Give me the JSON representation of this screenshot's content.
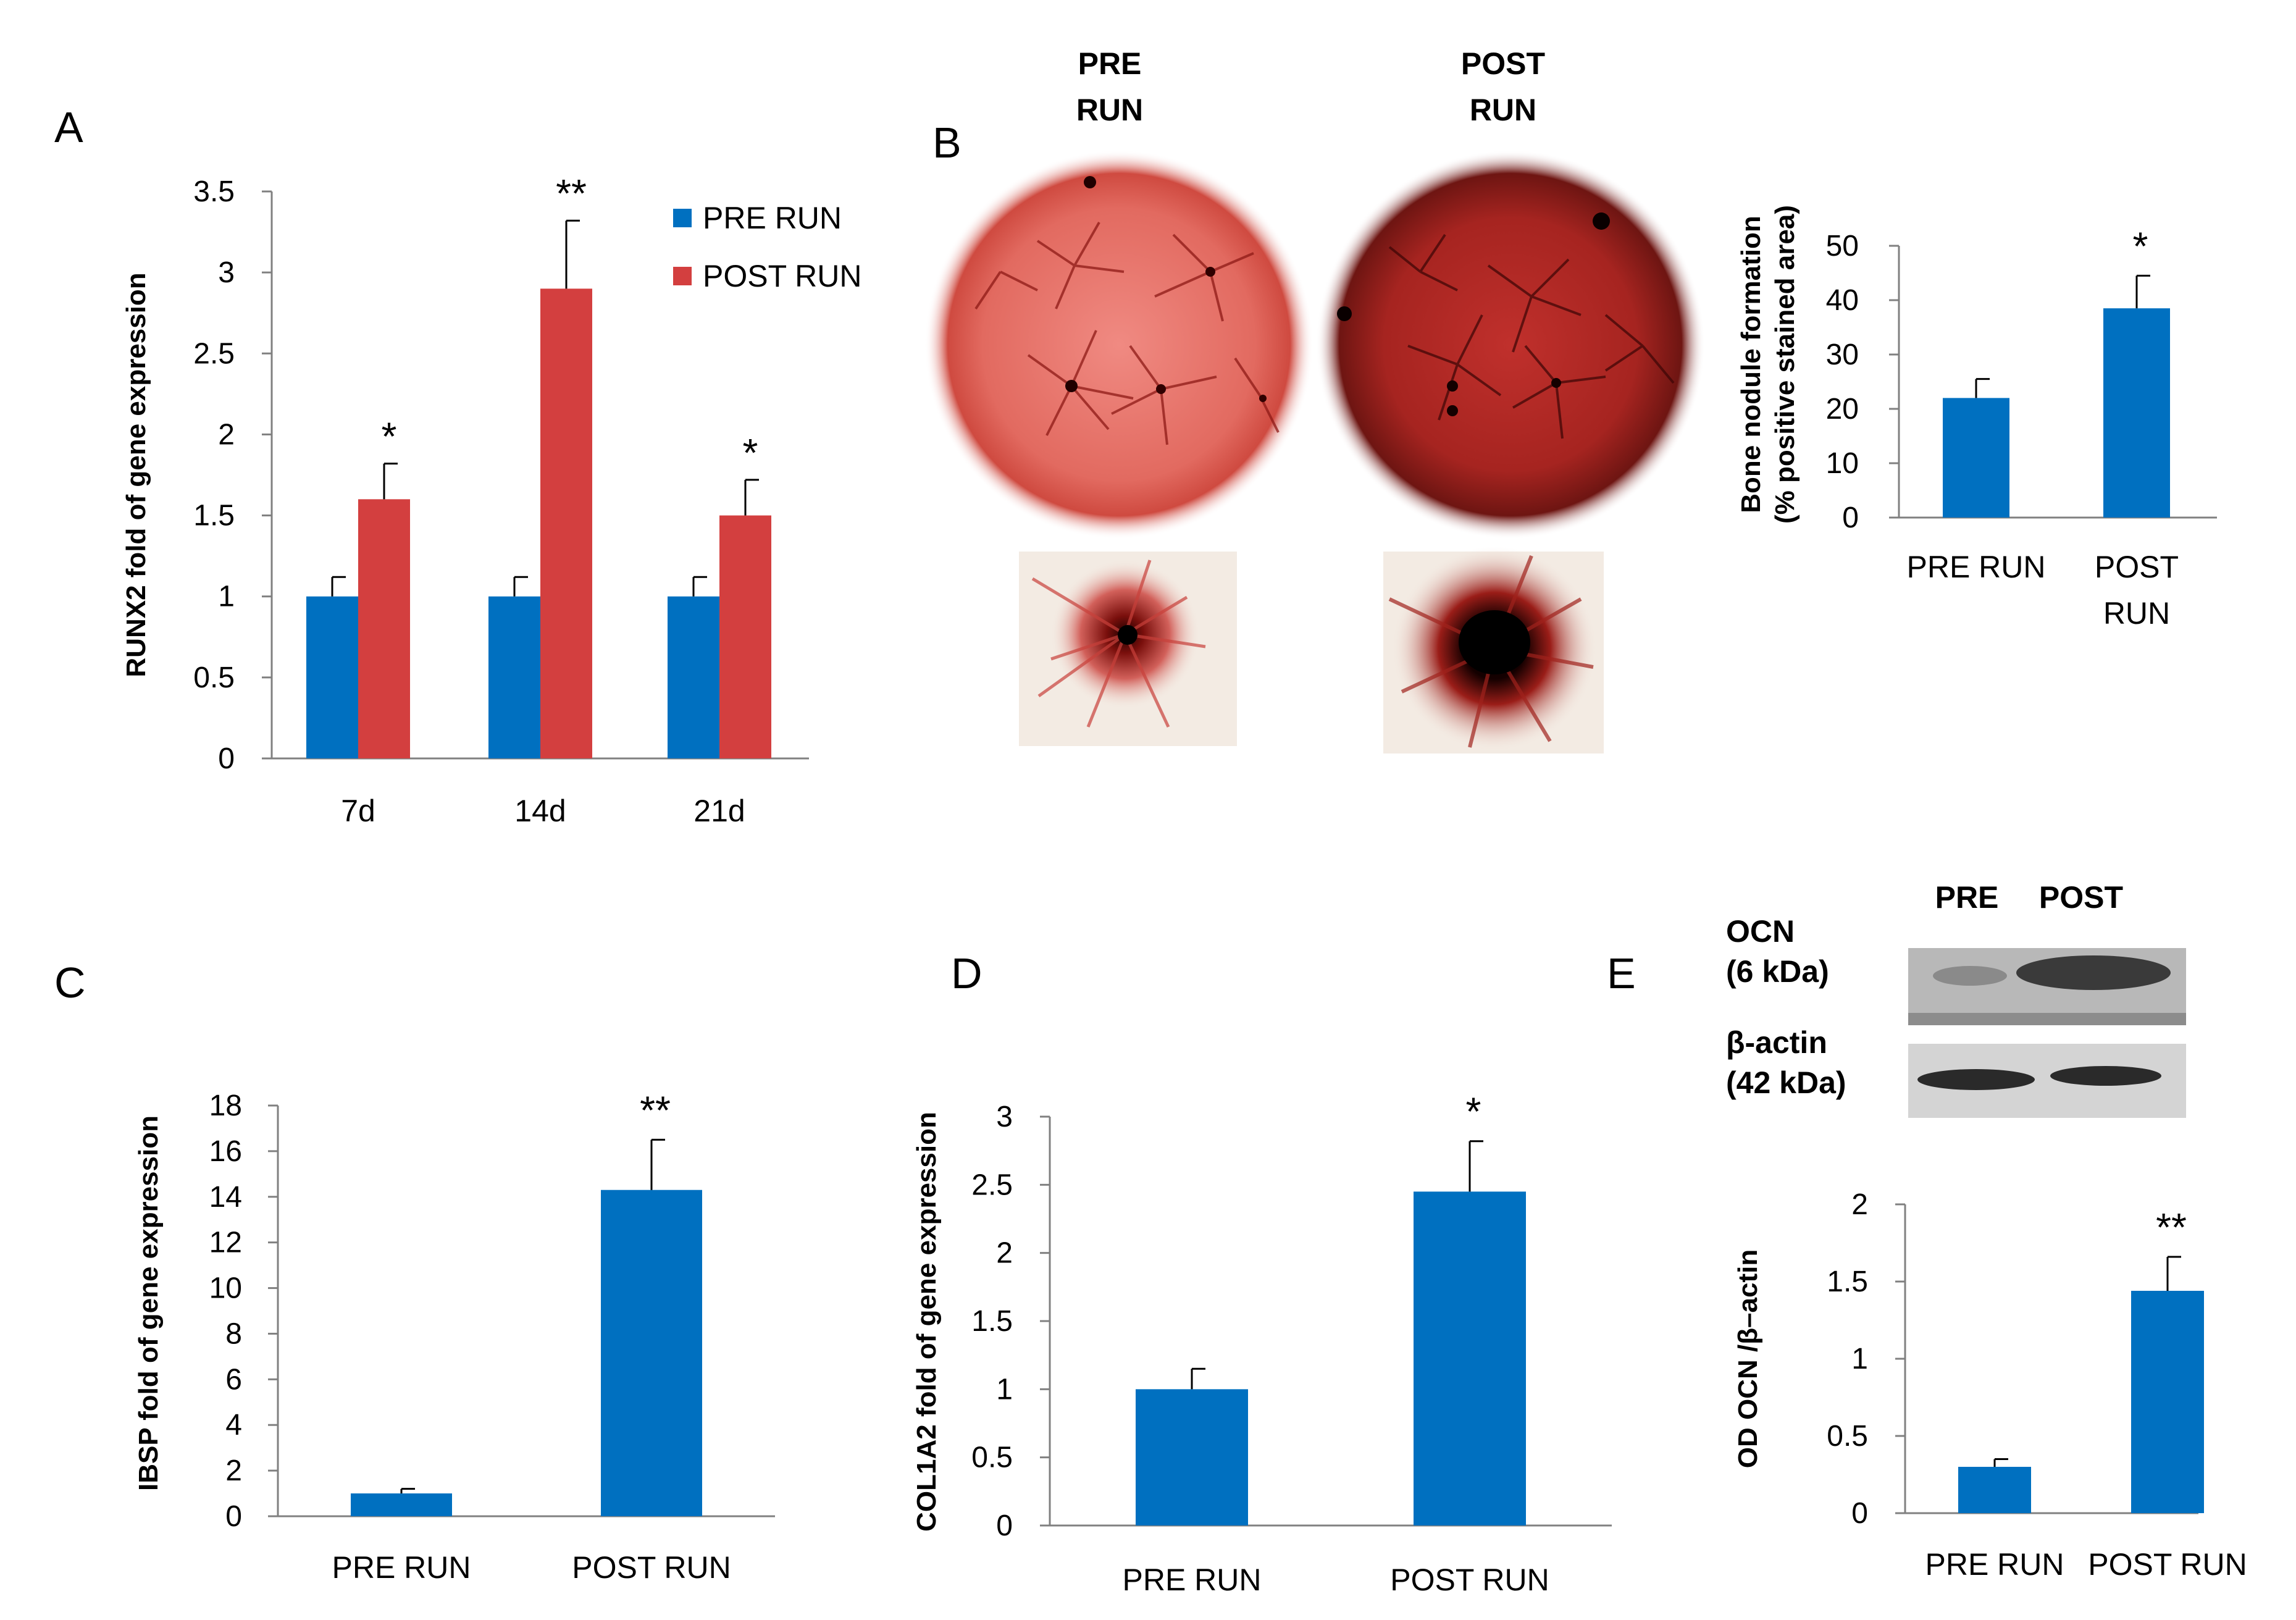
{
  "panels": {
    "A": "A",
    "B": "B",
    "C": "C",
    "D": "D",
    "E": "E"
  },
  "colors": {
    "pre": "#0070C0",
    "post": "#D33F3F",
    "axis": "#808080"
  },
  "chart_data": [
    {
      "id": "A",
      "type": "bar",
      "categories": [
        "7d",
        "14d",
        "21d"
      ],
      "series": [
        {
          "name": "PRE RUN",
          "values": [
            1,
            1,
            1
          ],
          "errors": [
            0.12,
            0.12,
            0.12
          ]
        },
        {
          "name": "POST RUN",
          "values": [
            1.6,
            2.9,
            1.5
          ],
          "errors": [
            0.22,
            0.42,
            0.22
          ]
        }
      ],
      "significance": [
        "*",
        "**",
        "*"
      ],
      "ylabel": "RUNX2 fold of gene expression",
      "ylim": [
        0,
        3.5
      ],
      "yticks": [
        "0",
        "0.5",
        "1",
        "1.5",
        "2",
        "2.5",
        "3",
        "3.5"
      ],
      "legend": "top-right"
    },
    {
      "id": "B",
      "type": "bar",
      "categories": [
        "PRE RUN",
        "POST RUN"
      ],
      "values": [
        22,
        38.5
      ],
      "errors": [
        3.5,
        6
      ],
      "significance": [
        "",
        "*"
      ],
      "ylabel": "Bone nodule formation",
      "ylabel2": "(% positive stained area)",
      "ylim": [
        0,
        50
      ],
      "yticks": [
        "0",
        "10",
        "20",
        "30",
        "40",
        "50"
      ]
    },
    {
      "id": "C",
      "type": "bar",
      "categories": [
        "PRE RUN",
        "POST RUN"
      ],
      "values": [
        1,
        14.3
      ],
      "errors": [
        0.2,
        2.2
      ],
      "significance": [
        "",
        "**"
      ],
      "ylabel": "IBSP  fold of gene  expression",
      "ylim": [
        0,
        18
      ],
      "yticks": [
        "0",
        "2",
        "4",
        "6",
        "8",
        "10",
        "12",
        "14",
        "16",
        "18"
      ]
    },
    {
      "id": "D",
      "type": "bar",
      "categories": [
        "PRE RUN",
        "POST RUN"
      ],
      "values": [
        1,
        2.45
      ],
      "errors": [
        0.15,
        0.37
      ],
      "significance": [
        "",
        "*"
      ],
      "ylabel": "COL1A2  fold of gene  expression",
      "ylim": [
        0,
        3
      ],
      "yticks": [
        "0",
        "0.5",
        "1",
        "1.5",
        "2",
        "2.5",
        "3"
      ]
    },
    {
      "id": "E",
      "type": "bar",
      "categories": [
        "PRE RUN",
        "POST RUN"
      ],
      "values": [
        0.3,
        1.44
      ],
      "errors": [
        0.05,
        0.22
      ],
      "significance": [
        "",
        "**"
      ],
      "ylabel": "OD OCN /β–actin",
      "ylim": [
        0,
        2
      ],
      "yticks": [
        "0",
        "0.5",
        "1",
        "1.5",
        "2"
      ]
    }
  ],
  "images": {
    "pre_label_1": "PRE",
    "pre_label_2": "RUN",
    "post_label_1": "POST",
    "post_label_2": "RUN"
  },
  "western": {
    "col_pre": "PRE",
    "col_post": "POST",
    "ocn_1": "OCN",
    "ocn_2": "(6 kDa)",
    "actin_1": "β-actin",
    "actin_2": "(42 kDa)"
  }
}
